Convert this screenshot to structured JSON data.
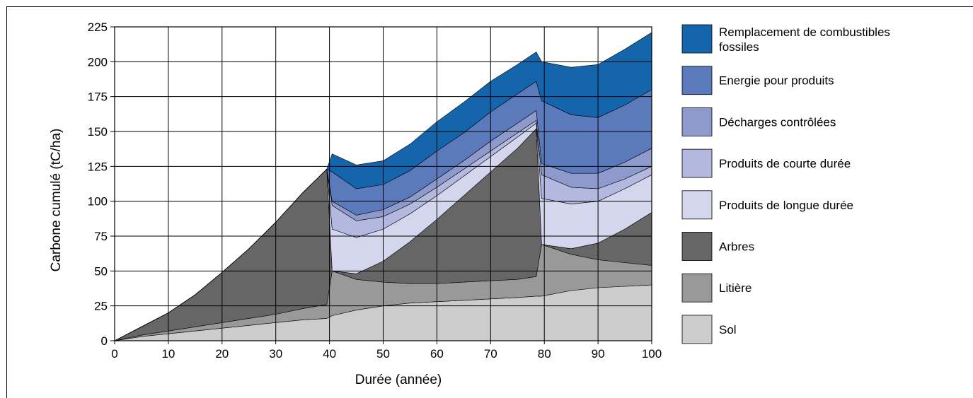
{
  "chart_data": {
    "type": "area",
    "stacked": true,
    "xlabel": "Durée (année)",
    "ylabel": "Carbone cumulé (tC/ha)",
    "xlim": [
      0,
      100
    ],
    "ylim": [
      0,
      225
    ],
    "x_ticks": [
      0,
      10,
      20,
      30,
      40,
      50,
      60,
      70,
      80,
      90,
      100
    ],
    "y_ticks": [
      0,
      25,
      50,
      75,
      100,
      125,
      150,
      175,
      200,
      225
    ],
    "grid": true,
    "legend_position": "right",
    "x": [
      0,
      5,
      10,
      15,
      20,
      25,
      30,
      35,
      39.5,
      40.5,
      45,
      50,
      55,
      60,
      65,
      70,
      75,
      78.5,
      79.5,
      85,
      90,
      95,
      100
    ],
    "series": [
      {
        "name": "Sol",
        "color": "#cccccc",
        "values": [
          0,
          3,
          5,
          7,
          9,
          11,
          13,
          15,
          16,
          18,
          22,
          25,
          27,
          28,
          29,
          30,
          31,
          32,
          32,
          36,
          38,
          39,
          40
        ]
      },
      {
        "name": "Litière",
        "color": "#999999",
        "values": [
          0,
          1,
          2,
          3,
          4,
          5,
          6,
          8,
          10,
          32,
          22,
          17,
          14,
          13,
          13,
          13,
          13,
          14,
          37,
          26,
          20,
          17,
          14
        ]
      },
      {
        "name": "Arbres",
        "color": "#666666",
        "values": [
          0,
          6,
          13,
          23,
          36,
          50,
          66,
          83,
          97,
          0,
          4,
          15,
          30,
          46,
          62,
          78,
          94,
          106,
          0,
          4,
          12,
          24,
          38
        ]
      },
      {
        "name": "Produits de longue durée",
        "color": "#d3d6ec",
        "values": [
          0,
          0,
          0,
          0,
          0,
          0,
          0,
          0,
          0,
          30,
          26,
          23,
          20,
          17,
          14,
          11,
          8,
          4,
          33,
          32,
          30,
          29,
          27
        ]
      },
      {
        "name": "Produits de courte durée",
        "color": "#b3b8de",
        "values": [
          0,
          0,
          0,
          0,
          0,
          0,
          0,
          0,
          0,
          17,
          12,
          9,
          7,
          6,
          5,
          4,
          3,
          2,
          17,
          12,
          9,
          7,
          6
        ]
      },
      {
        "name": "Décharges contrôlées",
        "color": "#8d9acb",
        "values": [
          0,
          0,
          0,
          0,
          0,
          0,
          0,
          0,
          0,
          3,
          4,
          5,
          5,
          6,
          6,
          7,
          7,
          7,
          8,
          10,
          11,
          12,
          13
        ]
      },
      {
        "name": "Energie pour produits",
        "color": "#5b7abb",
        "values": [
          0,
          0,
          0,
          0,
          0,
          0,
          0,
          0,
          0,
          21,
          19,
          18,
          19,
          20,
          20,
          21,
          21,
          21,
          45,
          42,
          40,
          41,
          42
        ]
      },
      {
        "name": "Remplacement de combustibles fossiles",
        "color": "#1565ad",
        "values": [
          0,
          0,
          0,
          0,
          0,
          0,
          0,
          0,
          0,
          13,
          17,
          17,
          19,
          21,
          22,
          22,
          21,
          21,
          28,
          34,
          38,
          40,
          41
        ]
      }
    ]
  }
}
